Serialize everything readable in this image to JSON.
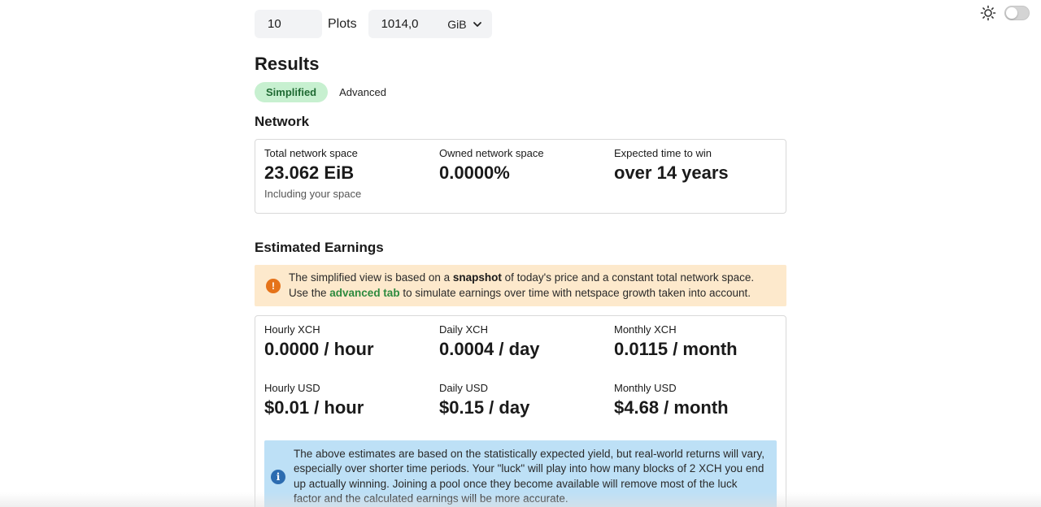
{
  "plots": {
    "count_value": "10",
    "count_label": "Plots",
    "size_value": "1014,0",
    "size_unit": "GiB"
  },
  "results": {
    "title": "Results",
    "tabs": [
      {
        "label": "Simplified",
        "active": true
      },
      {
        "label": "Advanced",
        "active": false
      }
    ]
  },
  "network": {
    "title": "Network",
    "stats": [
      {
        "label": "Total network space",
        "value": "23.062 EiB",
        "sub": "Including your space"
      },
      {
        "label": "Owned network space",
        "value": "0.0000%"
      },
      {
        "label": "Expected time to win",
        "value": "over 14 years"
      }
    ]
  },
  "earnings": {
    "title": "Estimated Earnings",
    "warning": {
      "icon": "exclamation-icon",
      "text_before": "The simplified view is based on a ",
      "bold": "snapshot",
      "text_middle": " of today's price and a constant total network space.",
      "line2_before": "Use the ",
      "link": "advanced tab",
      "line2_after": " to simulate earnings over time with netspace growth taken into account."
    },
    "stats": [
      {
        "label": "Hourly XCH",
        "value": "0.0000 / hour"
      },
      {
        "label": "Daily XCH",
        "value": "0.0004 / day"
      },
      {
        "label": "Monthly XCH",
        "value": "0.0115 / month"
      },
      {
        "label": "Hourly USD",
        "value": "$0.01 / hour"
      },
      {
        "label": "Daily USD",
        "value": "$0.15 / day"
      },
      {
        "label": "Monthly USD",
        "value": "$4.68 / month"
      }
    ],
    "info": {
      "icon": "info-icon",
      "text": "The above estimates are based on the statistically expected yield, but real-world returns will vary, especially over shorter time periods. Your \"luck\" will play into how many blocks of 2 XCH you end up actually winning. Joining a pool once they become available will remove most of the luck factor and the calculated earnings will be more accurate."
    }
  },
  "theme": {
    "icon": "sun-icon",
    "dark_mode": false
  },
  "colors": {
    "accent_green": "#2d8a3e",
    "tab_active_bg": "#c7f0d0",
    "warning_bg": "#fde9cc",
    "warning_icon": "#e5731a",
    "info_bg": "#bde0f6",
    "info_icon": "#2c6cb0"
  }
}
